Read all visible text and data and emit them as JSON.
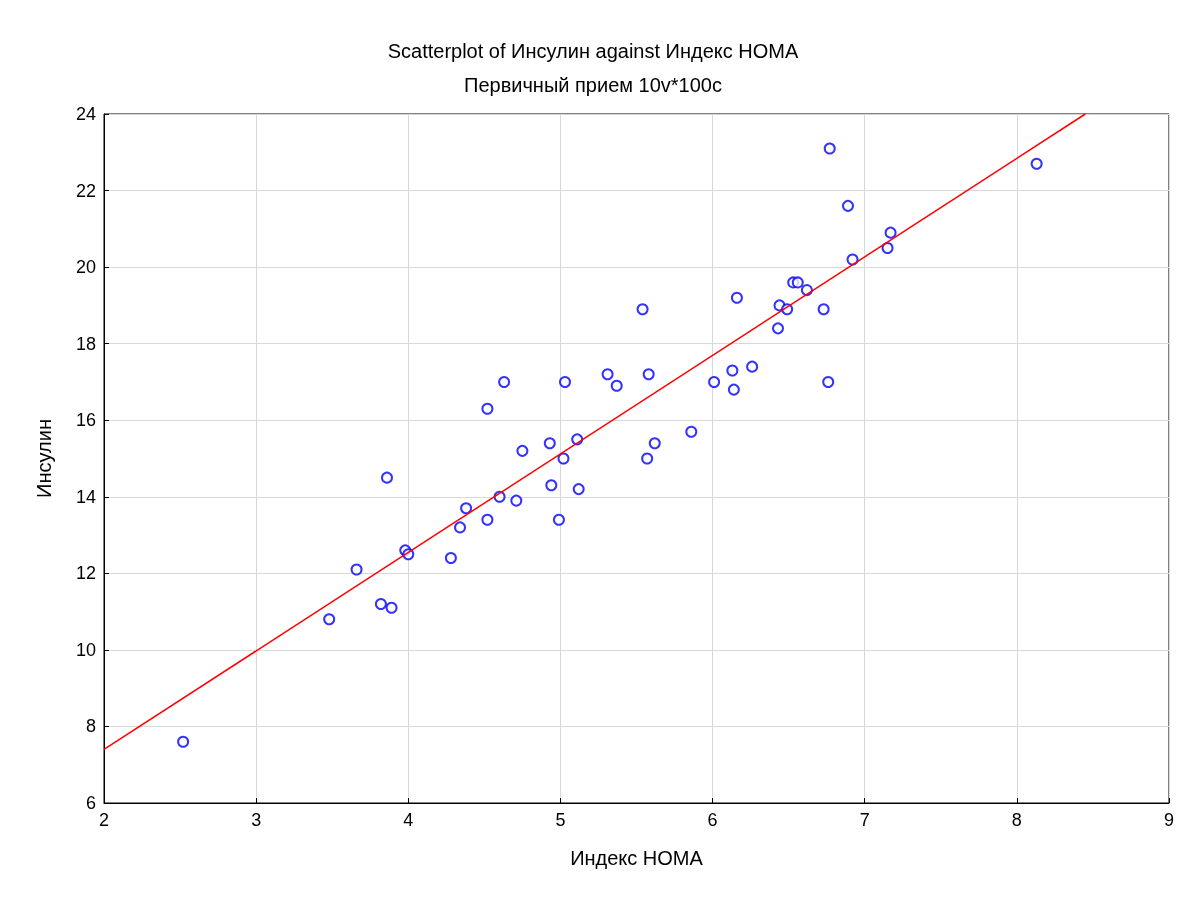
{
  "chart_data": {
    "type": "scatter",
    "title": "Scatterplot of Инсулин against Индекс HOMA",
    "subtitle": "Первичный прием 10v*100c",
    "xlabel": "Индекс HOMA",
    "ylabel": "Инсулин",
    "xlim": [
      2,
      9
    ],
    "xticks": [
      2,
      3,
      4,
      5,
      6,
      7,
      8,
      9
    ],
    "ylim": [
      6,
      24
    ],
    "yticks": [
      6,
      8,
      10,
      12,
      14,
      16,
      18,
      20,
      22,
      24
    ],
    "grid": true,
    "marker": "circle",
    "series": [
      {
        "color": "#0000ff",
        "x": [
          2.52,
          3.48,
          3.66,
          3.82,
          3.89,
          3.86,
          3.98,
          4.0,
          4.28,
          4.34,
          4.38,
          4.52,
          4.52,
          4.6,
          4.63,
          4.71,
          4.75,
          4.93,
          4.94,
          4.99,
          5.02,
          5.03,
          5.11,
          5.12,
          5.31,
          5.37,
          5.54,
          5.57,
          5.58,
          5.62,
          5.86,
          6.01,
          6.13,
          6.14,
          6.16,
          6.26,
          6.43,
          6.44,
          6.49,
          6.53,
          6.56,
          6.62,
          6.73,
          6.76,
          6.77,
          6.89,
          6.92,
          7.15,
          7.17,
          8.13
        ],
        "values": [
          7.6,
          10.8,
          12.1,
          11.2,
          11.1,
          14.5,
          12.6,
          12.5,
          12.4,
          13.2,
          13.7,
          16.3,
          13.4,
          14.0,
          17.0,
          13.9,
          15.2,
          15.4,
          14.3,
          13.4,
          15.0,
          17.0,
          15.5,
          14.2,
          17.2,
          16.9,
          18.9,
          15.0,
          17.2,
          15.4,
          15.7,
          17.0,
          17.3,
          16.8,
          19.2,
          17.4,
          18.4,
          19.0,
          18.9,
          19.6,
          19.6,
          19.4,
          18.9,
          17.0,
          23.1,
          21.6,
          20.2,
          20.5,
          20.9,
          22.7
        ]
      },
      {
        "type": "line",
        "color": "#ff0000",
        "x": [
          2,
          8.45
        ],
        "values": [
          7.4,
          24
        ],
        "marker": "none"
      }
    ]
  }
}
